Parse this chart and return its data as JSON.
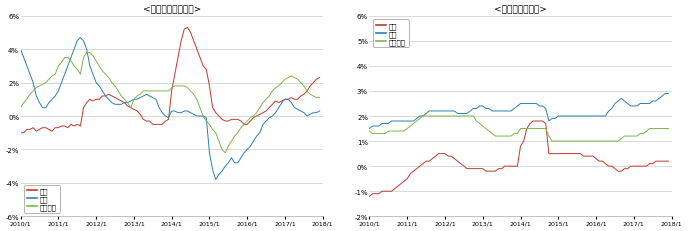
{
  "title_left": "<財（モノ）の物価>",
  "title_right": "<サービスの物価>",
  "colors": {
    "japan": "#c0392b",
    "us": "#2980b9",
    "euro": "#7ab648"
  },
  "legend_japan": "日本",
  "legend_us": "米国",
  "legend_euro": "ユーロ圈",
  "left_ylim": [
    -6,
    6
  ],
  "right_ylim": [
    -2,
    6
  ],
  "xtick_labels": [
    "2010/1",
    "2011/1",
    "2012/1",
    "2013/1",
    "2014/1",
    "2015/1",
    "2016/1",
    "2017/1",
    "2018/1"
  ],
  "left_japan": [
    -1.0,
    -1.0,
    -0.8,
    -0.8,
    -0.7,
    -0.9,
    -0.8,
    -0.7,
    -0.7,
    -0.8,
    -0.9,
    -0.7,
    -0.7,
    -0.6,
    -0.6,
    -0.7,
    -0.5,
    -0.6,
    -0.5,
    -0.6,
    0.5,
    0.8,
    1.0,
    0.9,
    1.0,
    1.0,
    1.2,
    1.2,
    1.3,
    1.2,
    1.1,
    1.0,
    0.9,
    0.8,
    0.6,
    0.5,
    0.4,
    0.3,
    0.1,
    -0.2,
    -0.3,
    -0.3,
    -0.5,
    -0.5,
    -0.5,
    -0.5,
    -0.3,
    -0.2,
    1.5,
    2.5,
    3.5,
    4.5,
    5.2,
    5.3,
    5.0,
    4.5,
    4.0,
    3.5,
    3.0,
    2.8,
    1.8,
    0.5,
    0.2,
    0.0,
    -0.2,
    -0.3,
    -0.3,
    -0.2,
    -0.2,
    -0.2,
    -0.3,
    -0.5,
    -0.5,
    -0.3,
    -0.1,
    0.0,
    0.1,
    0.2,
    0.3,
    0.5,
    0.7,
    0.9,
    0.8,
    0.9,
    1.0,
    1.0,
    1.1,
    1.0,
    1.0,
    1.2,
    1.3,
    1.5,
    1.8,
    2.0,
    2.2,
    2.3
  ],
  "left_us": [
    4.0,
    3.5,
    3.0,
    2.5,
    2.0,
    1.2,
    0.8,
    0.5,
    0.5,
    0.8,
    1.0,
    1.2,
    1.5,
    2.0,
    2.5,
    3.0,
    3.5,
    4.0,
    4.5,
    4.7,
    4.5,
    4.0,
    3.0,
    2.5,
    2.0,
    1.8,
    1.5,
    1.2,
    1.0,
    0.8,
    0.7,
    0.7,
    0.7,
    0.8,
    0.8,
    0.9,
    1.0,
    1.0,
    1.1,
    1.2,
    1.3,
    1.2,
    1.1,
    1.0,
    0.5,
    0.2,
    0.0,
    -0.1,
    0.3,
    0.3,
    0.2,
    0.2,
    0.3,
    0.3,
    0.2,
    0.1,
    0.0,
    0.0,
    0.0,
    -0.1,
    -2.2,
    -3.2,
    -3.8,
    -3.5,
    -3.3,
    -3.0,
    -2.8,
    -2.5,
    -2.8,
    -2.8,
    -2.5,
    -2.2,
    -2.0,
    -1.8,
    -1.5,
    -1.2,
    -1.0,
    -0.5,
    -0.3,
    -0.1,
    0.0,
    0.2,
    0.5,
    0.8,
    1.0,
    1.0,
    0.8,
    0.5,
    0.4,
    0.3,
    0.2,
    0.0,
    0.1,
    0.2,
    0.2,
    0.3
  ],
  "left_euro": [
    0.5,
    0.8,
    1.0,
    1.3,
    1.5,
    1.7,
    1.8,
    1.9,
    2.0,
    2.2,
    2.4,
    2.5,
    3.0,
    3.2,
    3.5,
    3.5,
    3.3,
    3.0,
    2.8,
    2.5,
    3.5,
    3.8,
    3.8,
    3.6,
    3.3,
    3.0,
    2.7,
    2.5,
    2.3,
    2.0,
    1.8,
    1.5,
    1.2,
    1.0,
    0.8,
    0.5,
    1.0,
    1.2,
    1.3,
    1.5,
    1.5,
    1.5,
    1.5,
    1.5,
    1.5,
    1.5,
    1.5,
    1.5,
    1.7,
    1.8,
    1.8,
    1.8,
    1.8,
    1.7,
    1.5,
    1.3,
    1.0,
    0.5,
    0.0,
    -0.3,
    -0.5,
    -0.8,
    -1.0,
    -1.5,
    -2.0,
    -2.2,
    -1.8,
    -1.5,
    -1.2,
    -1.0,
    -0.7,
    -0.5,
    -0.3,
    -0.1,
    0.0,
    0.2,
    0.5,
    0.8,
    1.0,
    1.2,
    1.5,
    1.7,
    1.8,
    2.0,
    2.2,
    2.3,
    2.4,
    2.3,
    2.2,
    2.0,
    1.8,
    1.5,
    1.3,
    1.2,
    1.1,
    1.1
  ],
  "right_japan": [
    -1.2,
    -1.1,
    -1.1,
    -1.1,
    -1.0,
    -1.0,
    -1.0,
    -1.0,
    -0.9,
    -0.8,
    -0.7,
    -0.6,
    -0.5,
    -0.3,
    -0.2,
    -0.1,
    0.0,
    0.1,
    0.2,
    0.2,
    0.3,
    0.4,
    0.5,
    0.5,
    0.5,
    0.4,
    0.4,
    0.3,
    0.2,
    0.1,
    0.0,
    -0.1,
    -0.1,
    -0.1,
    -0.1,
    -0.1,
    -0.1,
    -0.2,
    -0.2,
    -0.2,
    -0.2,
    -0.1,
    -0.1,
    0.0,
    0.0,
    0.0,
    0.0,
    0.0,
    0.8,
    1.0,
    1.5,
    1.7,
    1.8,
    1.8,
    1.8,
    1.8,
    1.7,
    0.5,
    0.5,
    0.5,
    0.5,
    0.5,
    0.5,
    0.5,
    0.5,
    0.5,
    0.5,
    0.5,
    0.4,
    0.4,
    0.4,
    0.4,
    0.3,
    0.2,
    0.2,
    0.1,
    0.0,
    0.0,
    -0.1,
    -0.2,
    -0.2,
    -0.1,
    -0.1,
    0.0,
    0.0,
    0.0,
    0.0,
    0.0,
    0.0,
    0.1,
    0.1,
    0.2,
    0.2,
    0.2,
    0.2,
    0.2
  ],
  "right_us": [
    1.5,
    1.6,
    1.6,
    1.6,
    1.7,
    1.7,
    1.7,
    1.8,
    1.8,
    1.8,
    1.8,
    1.8,
    1.8,
    1.8,
    1.8,
    1.9,
    2.0,
    2.0,
    2.1,
    2.2,
    2.2,
    2.2,
    2.2,
    2.2,
    2.2,
    2.2,
    2.2,
    2.2,
    2.1,
    2.1,
    2.1,
    2.1,
    2.2,
    2.3,
    2.3,
    2.4,
    2.4,
    2.3,
    2.3,
    2.2,
    2.2,
    2.2,
    2.2,
    2.2,
    2.2,
    2.2,
    2.3,
    2.4,
    2.5,
    2.5,
    2.5,
    2.5,
    2.5,
    2.5,
    2.4,
    2.4,
    2.3,
    1.8,
    1.9,
    1.9,
    2.0,
    2.0,
    2.0,
    2.0,
    2.0,
    2.0,
    2.0,
    2.0,
    2.0,
    2.0,
    2.0,
    2.0,
    2.0,
    2.0,
    2.0,
    2.0,
    2.2,
    2.3,
    2.5,
    2.6,
    2.7,
    2.6,
    2.5,
    2.4,
    2.4,
    2.4,
    2.5,
    2.5,
    2.5,
    2.5,
    2.6,
    2.6,
    2.7,
    2.8,
    2.9,
    2.9
  ],
  "right_euro": [
    1.4,
    1.3,
    1.3,
    1.3,
    1.3,
    1.3,
    1.4,
    1.4,
    1.4,
    1.4,
    1.4,
    1.4,
    1.5,
    1.6,
    1.7,
    1.8,
    1.9,
    2.0,
    2.0,
    2.0,
    2.0,
    2.0,
    2.0,
    2.0,
    2.0,
    2.0,
    2.0,
    2.0,
    2.0,
    2.0,
    2.0,
    2.0,
    2.0,
    2.0,
    1.8,
    1.7,
    1.6,
    1.5,
    1.4,
    1.3,
    1.2,
    1.2,
    1.2,
    1.2,
    1.2,
    1.2,
    1.3,
    1.3,
    1.5,
    1.5,
    1.5,
    1.5,
    1.5,
    1.5,
    1.5,
    1.5,
    1.5,
    1.2,
    1.0,
    1.0,
    1.0,
    1.0,
    1.0,
    1.0,
    1.0,
    1.0,
    1.0,
    1.0,
    1.0,
    1.0,
    1.0,
    1.0,
    1.0,
    1.0,
    1.0,
    1.0,
    1.0,
    1.0,
    1.0,
    1.0,
    1.1,
    1.2,
    1.2,
    1.2,
    1.2,
    1.2,
    1.3,
    1.3,
    1.4,
    1.5,
    1.5,
    1.5,
    1.5,
    1.5,
    1.5,
    1.5
  ]
}
